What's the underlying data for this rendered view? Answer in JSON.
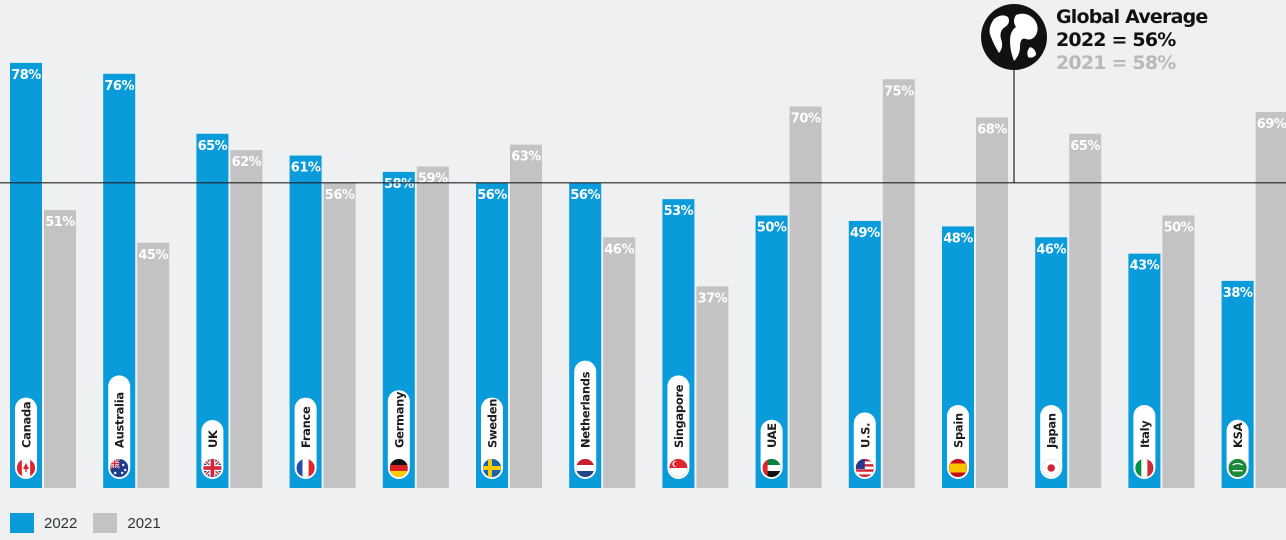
{
  "colors": {
    "y2022": "#0a9bdb",
    "y2021": "#c3c3c3",
    "avg_line": "#222222",
    "background": "#eef0f2"
  },
  "global_average": {
    "title": "Global Average",
    "line2022": "2022 = 56%",
    "line2021": "2021 = 58%",
    "icon": "globe-icon"
  },
  "legend": {
    "label2022": "2022",
    "label2021": "2021"
  },
  "chart_data": {
    "type": "bar",
    "categories": [
      "Canada",
      "Australia",
      "UK",
      "France",
      "Germany",
      "Sweden",
      "Netherlands",
      "Singapore",
      "UAE",
      "U.S.",
      "Spain",
      "Japan",
      "Italy",
      "KSA"
    ],
    "series": [
      {
        "name": "2022",
        "values": [
          78,
          76,
          65,
          61,
          58,
          56,
          56,
          53,
          50,
          49,
          48,
          46,
          43,
          38
        ],
        "labels": [
          "78%",
          "76%",
          "65%",
          "61%",
          "58%",
          "56%",
          "56%",
          "53%",
          "50%",
          "49%",
          "48%",
          "46%",
          "43%",
          "38%"
        ]
      },
      {
        "name": "2021",
        "values": [
          51,
          45,
          62,
          56,
          59,
          63,
          46,
          37,
          70,
          75,
          68,
          65,
          50,
          69
        ],
        "labels": [
          "51%",
          "45%",
          "62%",
          "56%",
          "59%",
          "63%",
          "46%",
          "37%",
          "70%",
          "75%",
          "68%",
          "65%",
          "50%",
          "69%"
        ]
      }
    ],
    "reference_line": 56,
    "flags": [
      "canada-flag-icon",
      "australia-flag-icon",
      "uk-flag-icon",
      "france-flag-icon",
      "germany-flag-icon",
      "sweden-flag-icon",
      "netherlands-flag-icon",
      "singapore-flag-icon",
      "uae-flag-icon",
      "us-flag-icon",
      "spain-flag-icon",
      "japan-flag-icon",
      "italy-flag-icon",
      "ksa-flag-icon"
    ],
    "legend_position": "bottom-left"
  }
}
